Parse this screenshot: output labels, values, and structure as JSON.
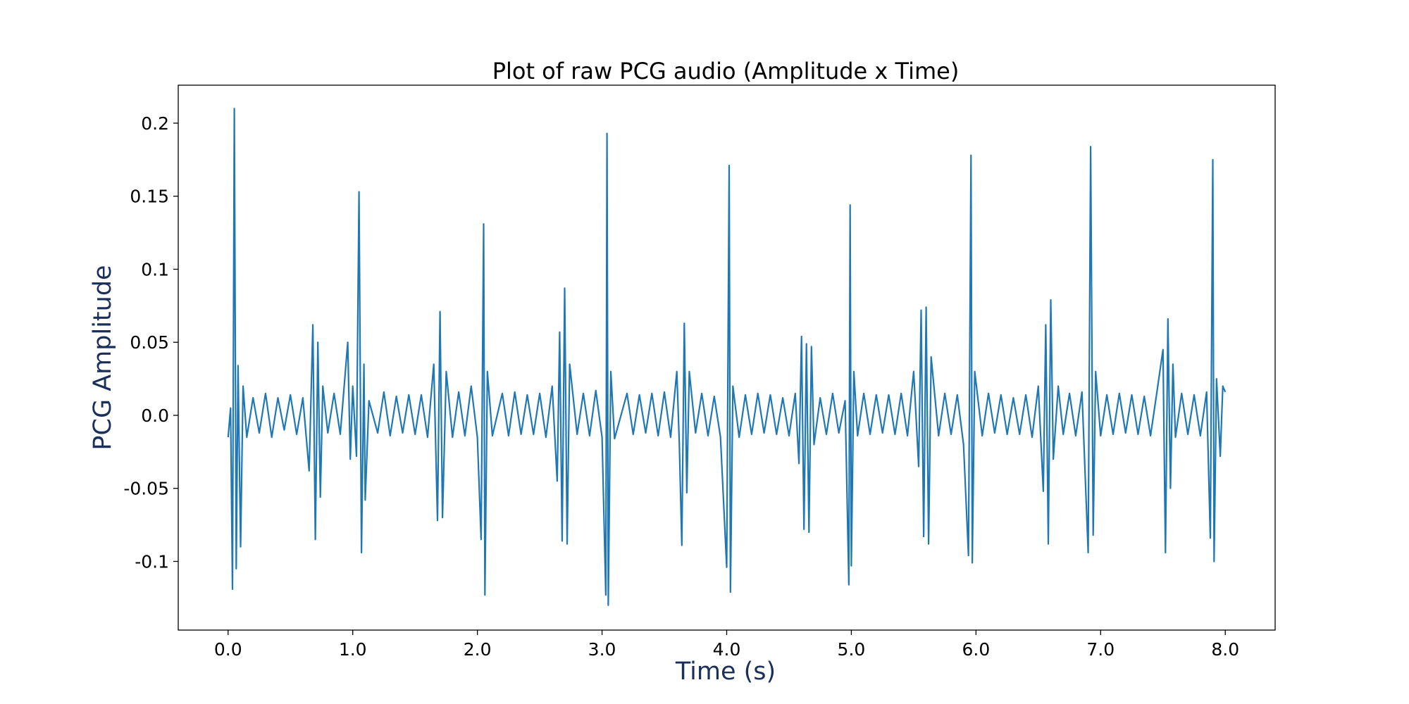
{
  "chart_data": {
    "type": "line",
    "title": "Plot of raw PCG audio (Amplitude x Time)",
    "xlabel": "Time (s)",
    "ylabel": "PCG Amplitude",
    "xlim": [
      -0.4,
      8.4
    ],
    "ylim": [
      -0.147,
      0.226
    ],
    "xticks": [
      0,
      1,
      2,
      3,
      4,
      5,
      6,
      7,
      8
    ],
    "xtick_labels": [
      "0.0",
      "1.0",
      "2.0",
      "3.0",
      "4.0",
      "5.0",
      "6.0",
      "7.0",
      "8.0"
    ],
    "yticks": [
      0.2,
      0.15,
      0.1,
      0.05,
      0.0,
      -0.05,
      -0.1
    ],
    "ytick_labels": [
      "0.2",
      "0.15",
      "0.1",
      "0.05",
      "0.0",
      "-0.05",
      "-0.1"
    ],
    "grid": false,
    "legend": "none",
    "series": [
      {
        "color": "#1f77b4",
        "points": [
          [
            0.0,
            -0.015
          ],
          [
            0.02,
            0.005
          ],
          [
            0.035,
            -0.119
          ],
          [
            0.05,
            0.21
          ],
          [
            0.065,
            -0.105
          ],
          [
            0.08,
            0.034
          ],
          [
            0.1,
            -0.09
          ],
          [
            0.12,
            0.02
          ],
          [
            0.15,
            -0.015
          ],
          [
            0.2,
            0.012
          ],
          [
            0.25,
            -0.012
          ],
          [
            0.3,
            0.015
          ],
          [
            0.35,
            -0.015
          ],
          [
            0.4,
            0.012
          ],
          [
            0.45,
            -0.01
          ],
          [
            0.5,
            0.014
          ],
          [
            0.55,
            -0.013
          ],
          [
            0.6,
            0.012
          ],
          [
            0.65,
            -0.038
          ],
          [
            0.68,
            0.062
          ],
          [
            0.7,
            -0.085
          ],
          [
            0.72,
            0.05
          ],
          [
            0.74,
            -0.056
          ],
          [
            0.76,
            0.02
          ],
          [
            0.8,
            -0.012
          ],
          [
            0.85,
            0.015
          ],
          [
            0.9,
            -0.013
          ],
          [
            0.96,
            0.05
          ],
          [
            0.98,
            -0.03
          ],
          [
            1.0,
            0.02
          ],
          [
            1.03,
            -0.028
          ],
          [
            1.05,
            0.153
          ],
          [
            1.07,
            -0.094
          ],
          [
            1.09,
            0.035
          ],
          [
            1.1,
            -0.058
          ],
          [
            1.13,
            0.01
          ],
          [
            1.2,
            -0.012
          ],
          [
            1.25,
            0.016
          ],
          [
            1.3,
            -0.014
          ],
          [
            1.35,
            0.013
          ],
          [
            1.4,
            -0.012
          ],
          [
            1.45,
            0.014
          ],
          [
            1.5,
            -0.013
          ],
          [
            1.55,
            0.014
          ],
          [
            1.6,
            -0.015
          ],
          [
            1.65,
            0.035
          ],
          [
            1.68,
            -0.072
          ],
          [
            1.7,
            0.071
          ],
          [
            1.72,
            -0.07
          ],
          [
            1.75,
            0.03
          ],
          [
            1.8,
            -0.015
          ],
          [
            1.85,
            0.016
          ],
          [
            1.9,
            -0.014
          ],
          [
            1.95,
            0.02
          ],
          [
            2.0,
            -0.015
          ],
          [
            2.03,
            -0.085
          ],
          [
            2.05,
            0.131
          ],
          [
            2.06,
            -0.123
          ],
          [
            2.08,
            0.03
          ],
          [
            2.12,
            -0.014
          ],
          [
            2.2,
            0.015
          ],
          [
            2.25,
            -0.014
          ],
          [
            2.3,
            0.016
          ],
          [
            2.35,
            -0.013
          ],
          [
            2.4,
            0.014
          ],
          [
            2.45,
            -0.013
          ],
          [
            2.5,
            0.015
          ],
          [
            2.55,
            -0.015
          ],
          [
            2.6,
            0.02
          ],
          [
            2.64,
            -0.045
          ],
          [
            2.66,
            0.057
          ],
          [
            2.68,
            -0.086
          ],
          [
            2.7,
            0.087
          ],
          [
            2.72,
            -0.088
          ],
          [
            2.74,
            0.035
          ],
          [
            2.8,
            -0.013
          ],
          [
            2.85,
            0.015
          ],
          [
            2.9,
            -0.014
          ],
          [
            2.95,
            0.017
          ],
          [
            3.0,
            -0.015
          ],
          [
            3.03,
            -0.123
          ],
          [
            3.04,
            0.193
          ],
          [
            3.05,
            -0.13
          ],
          [
            3.07,
            0.03
          ],
          [
            3.1,
            -0.016
          ],
          [
            3.2,
            0.015
          ],
          [
            3.25,
            -0.013
          ],
          [
            3.3,
            0.014
          ],
          [
            3.35,
            -0.012
          ],
          [
            3.4,
            0.015
          ],
          [
            3.45,
            -0.014
          ],
          [
            3.5,
            0.016
          ],
          [
            3.55,
            -0.015
          ],
          [
            3.6,
            0.03
          ],
          [
            3.62,
            -0.02
          ],
          [
            3.64,
            -0.089
          ],
          [
            3.66,
            0.063
          ],
          [
            3.68,
            -0.053
          ],
          [
            3.7,
            0.03
          ],
          [
            3.75,
            -0.012
          ],
          [
            3.8,
            0.015
          ],
          [
            3.85,
            -0.014
          ],
          [
            3.9,
            0.013
          ],
          [
            3.95,
            -0.015
          ],
          [
            4.0,
            -0.104
          ],
          [
            4.02,
            0.171
          ],
          [
            4.03,
            -0.121
          ],
          [
            4.05,
            0.02
          ],
          [
            4.1,
            -0.015
          ],
          [
            4.15,
            0.014
          ],
          [
            4.2,
            -0.013
          ],
          [
            4.25,
            0.015
          ],
          [
            4.3,
            -0.012
          ],
          [
            4.35,
            0.014
          ],
          [
            4.4,
            -0.013
          ],
          [
            4.45,
            0.012
          ],
          [
            4.5,
            -0.014
          ],
          [
            4.55,
            0.015
          ],
          [
            4.58,
            -0.033
          ],
          [
            4.6,
            0.054
          ],
          [
            4.62,
            -0.078
          ],
          [
            4.64,
            0.049
          ],
          [
            4.66,
            -0.08
          ],
          [
            4.68,
            0.047
          ],
          [
            4.7,
            -0.02
          ],
          [
            4.75,
            0.012
          ],
          [
            4.8,
            -0.013
          ],
          [
            4.85,
            0.015
          ],
          [
            4.9,
            -0.012
          ],
          [
            4.95,
            0.01
          ],
          [
            4.98,
            -0.116
          ],
          [
            4.99,
            0.144
          ],
          [
            5.0,
            -0.103
          ],
          [
            5.02,
            0.03
          ],
          [
            5.05,
            -0.014
          ],
          [
            5.1,
            0.015
          ],
          [
            5.15,
            -0.013
          ],
          [
            5.2,
            0.014
          ],
          [
            5.25,
            -0.012
          ],
          [
            5.3,
            0.014
          ],
          [
            5.35,
            -0.013
          ],
          [
            5.4,
            0.015
          ],
          [
            5.45,
            -0.014
          ],
          [
            5.5,
            0.03
          ],
          [
            5.54,
            -0.035
          ],
          [
            5.56,
            0.072
          ],
          [
            5.58,
            -0.083
          ],
          [
            5.6,
            0.074
          ],
          [
            5.62,
            -0.088
          ],
          [
            5.64,
            0.04
          ],
          [
            5.7,
            -0.014
          ],
          [
            5.75,
            0.015
          ],
          [
            5.8,
            -0.013
          ],
          [
            5.85,
            0.014
          ],
          [
            5.9,
            -0.02
          ],
          [
            5.94,
            -0.096
          ],
          [
            5.96,
            0.178
          ],
          [
            5.97,
            -0.101
          ],
          [
            5.99,
            0.03
          ],
          [
            6.05,
            -0.014
          ],
          [
            6.1,
            0.015
          ],
          [
            6.15,
            -0.012
          ],
          [
            6.2,
            0.014
          ],
          [
            6.25,
            -0.013
          ],
          [
            6.3,
            0.012
          ],
          [
            6.35,
            -0.013
          ],
          [
            6.4,
            0.014
          ],
          [
            6.45,
            -0.015
          ],
          [
            6.5,
            0.02
          ],
          [
            6.54,
            -0.052
          ],
          [
            6.56,
            0.062
          ],
          [
            6.58,
            -0.088
          ],
          [
            6.6,
            0.079
          ],
          [
            6.62,
            -0.03
          ],
          [
            6.66,
            0.02
          ],
          [
            6.7,
            -0.013
          ],
          [
            6.75,
            0.015
          ],
          [
            6.8,
            -0.014
          ],
          [
            6.85,
            0.016
          ],
          [
            6.9,
            -0.094
          ],
          [
            6.92,
            0.184
          ],
          [
            6.94,
            -0.082
          ],
          [
            6.96,
            0.03
          ],
          [
            7.0,
            -0.014
          ],
          [
            7.05,
            0.014
          ],
          [
            7.1,
            -0.013
          ],
          [
            7.15,
            0.015
          ],
          [
            7.2,
            -0.012
          ],
          [
            7.25,
            0.014
          ],
          [
            7.3,
            -0.013
          ],
          [
            7.35,
            0.013
          ],
          [
            7.4,
            -0.014
          ],
          [
            7.45,
            0.015
          ],
          [
            7.5,
            0.045
          ],
          [
            7.52,
            -0.094
          ],
          [
            7.54,
            0.066
          ],
          [
            7.56,
            -0.05
          ],
          [
            7.58,
            0.035
          ],
          [
            7.6,
            -0.015
          ],
          [
            7.65,
            0.015
          ],
          [
            7.7,
            -0.013
          ],
          [
            7.75,
            0.014
          ],
          [
            7.8,
            -0.014
          ],
          [
            7.85,
            0.016
          ],
          [
            7.88,
            -0.084
          ],
          [
            7.9,
            0.175
          ],
          [
            7.91,
            -0.1
          ],
          [
            7.93,
            0.025
          ],
          [
            7.96,
            -0.028
          ],
          [
            7.98,
            0.02
          ],
          [
            8.0,
            0.016
          ]
        ]
      }
    ]
  }
}
